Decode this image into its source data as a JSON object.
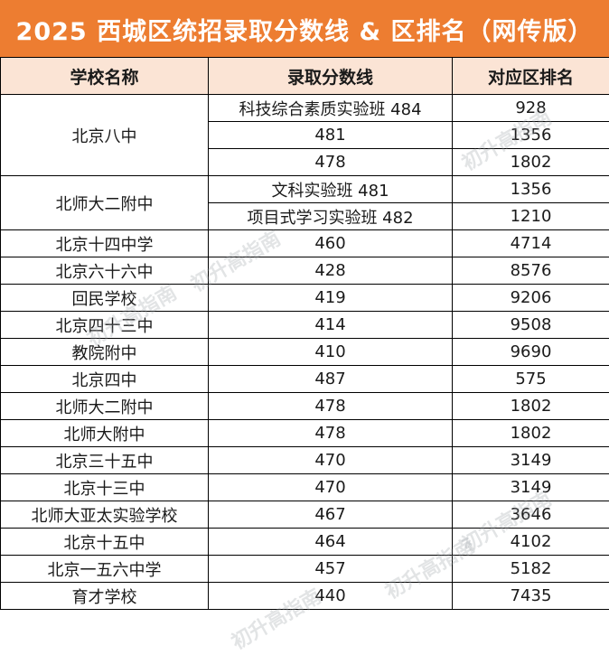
{
  "title": "2025 西城区统招录取分数线 & 区排名（网传版）",
  "colors": {
    "header_bg": "#ED7D31",
    "column_header_bg": "#FBE4D5",
    "border": "#000000"
  },
  "columns": [
    "学校名称",
    "录取分数线",
    "对应区排名"
  ],
  "rows": [
    {
      "school": "北京八中",
      "rowspan": 3,
      "entries": [
        {
          "score": "科技综合素质实验班 484",
          "rank": "928"
        },
        {
          "score": "481",
          "rank": "1356"
        },
        {
          "score": "478",
          "rank": "1802"
        }
      ]
    },
    {
      "school": "北师大二附中",
      "rowspan": 2,
      "entries": [
        {
          "score": "文科实验班 481",
          "rank": "1356"
        },
        {
          "score": "项目式学习实验班 482",
          "rank": "1210"
        }
      ]
    },
    {
      "school": "北京十四中学",
      "rowspan": 1,
      "entries": [
        {
          "score": "460",
          "rank": "4714"
        }
      ]
    },
    {
      "school": "北京六十六中",
      "rowspan": 1,
      "entries": [
        {
          "score": "428",
          "rank": "8576"
        }
      ]
    },
    {
      "school": "回民学校",
      "rowspan": 1,
      "entries": [
        {
          "score": "419",
          "rank": "9206"
        }
      ]
    },
    {
      "school": "北京四十三中",
      "rowspan": 1,
      "entries": [
        {
          "score": "414",
          "rank": "9508"
        }
      ]
    },
    {
      "school": "教院附中",
      "rowspan": 1,
      "entries": [
        {
          "score": "410",
          "rank": "9690"
        }
      ]
    },
    {
      "school": "北京四中",
      "rowspan": 1,
      "entries": [
        {
          "score": "487",
          "rank": "575"
        }
      ]
    },
    {
      "school": "北师大二附中",
      "rowspan": 1,
      "entries": [
        {
          "score": "478",
          "rank": "1802"
        }
      ]
    },
    {
      "school": "北师大附中",
      "rowspan": 1,
      "entries": [
        {
          "score": "478",
          "rank": "1802"
        }
      ]
    },
    {
      "school": "北京三十五中",
      "rowspan": 1,
      "entries": [
        {
          "score": "470",
          "rank": "3149"
        }
      ]
    },
    {
      "school": "北京十三中",
      "rowspan": 1,
      "entries": [
        {
          "score": "470",
          "rank": "3149"
        }
      ]
    },
    {
      "school": "北师大亚太实验学校",
      "rowspan": 1,
      "entries": [
        {
          "score": "467",
          "rank": "3646"
        }
      ]
    },
    {
      "school": "北京十五中",
      "rowspan": 1,
      "entries": [
        {
          "score": "464",
          "rank": "4102"
        }
      ]
    },
    {
      "school": "北京一五六中学",
      "rowspan": 1,
      "entries": [
        {
          "score": "457",
          "rank": "5182"
        }
      ]
    },
    {
      "school": "育才学校",
      "rowspan": 1,
      "entries": [
        {
          "score": "440",
          "rank": "7435"
        }
      ]
    }
  ],
  "watermark": "初升高指南"
}
